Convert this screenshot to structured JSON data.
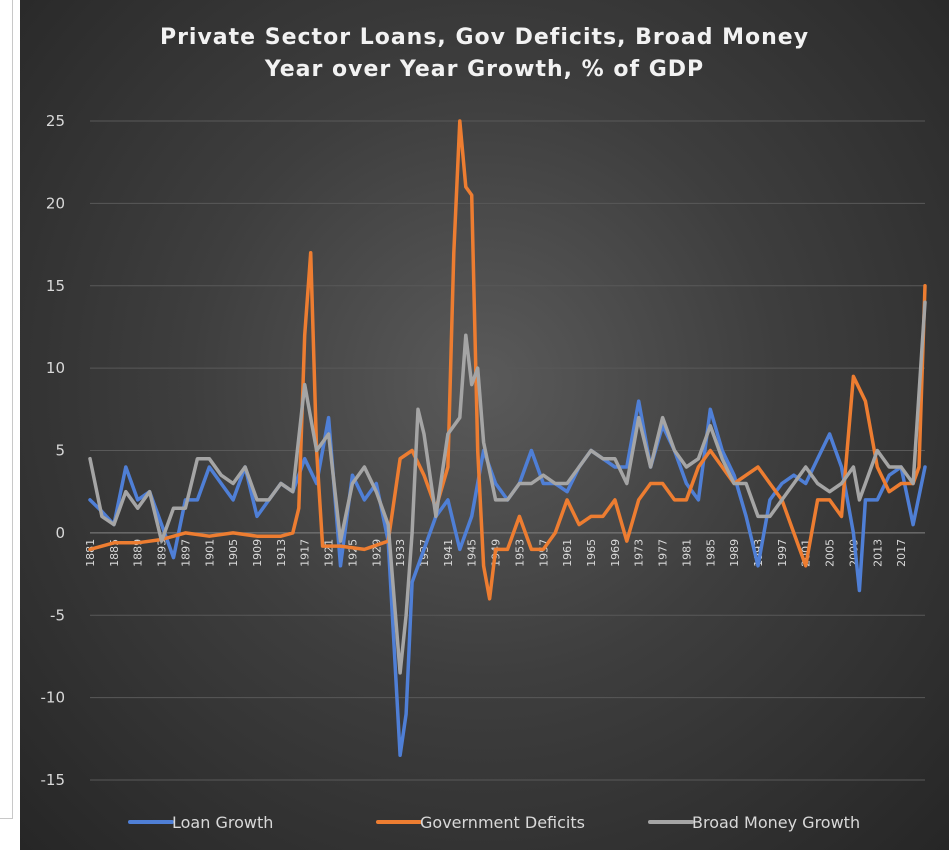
{
  "chart_data": {
    "type": "line",
    "title_line1": "Private Sector Loans, Gov Deficits, Broad Money",
    "title_line2": "Year over Year Growth, % of GDP",
    "ylim": [
      -15,
      25
    ],
    "yticks": [
      25,
      20,
      15,
      10,
      5,
      0,
      -5,
      -10,
      -15
    ],
    "xlim": [
      1881,
      2021
    ],
    "xticks": [
      1881,
      1885,
      1889,
      1893,
      1897,
      1901,
      1905,
      1909,
      1913,
      1917,
      1921,
      1925,
      1929,
      1933,
      1937,
      1941,
      1945,
      1949,
      1953,
      1957,
      1961,
      1965,
      1969,
      1973,
      1977,
      1981,
      1985,
      1989,
      1993,
      1997,
      2001,
      2005,
      2009,
      2013,
      2017
    ],
    "grid": "horizontal",
    "legend_position": "bottom",
    "series": [
      {
        "name": "Loan Growth",
        "color": "#4f7fd6",
        "points": [
          [
            1881,
            2
          ],
          [
            1883,
            1.3
          ],
          [
            1885,
            0.5
          ],
          [
            1887,
            4
          ],
          [
            1889,
            2
          ],
          [
            1891,
            2.5
          ],
          [
            1893,
            0.5
          ],
          [
            1895,
            -1.5
          ],
          [
            1897,
            2
          ],
          [
            1899,
            2
          ],
          [
            1901,
            4
          ],
          [
            1903,
            3
          ],
          [
            1905,
            2
          ],
          [
            1907,
            4
          ],
          [
            1909,
            1
          ],
          [
            1911,
            2
          ],
          [
            1913,
            3
          ],
          [
            1915,
            2.5
          ],
          [
            1917,
            4.5
          ],
          [
            1919,
            3
          ],
          [
            1921,
            7
          ],
          [
            1923,
            -2
          ],
          [
            1925,
            3.5
          ],
          [
            1927,
            2
          ],
          [
            1929,
            3
          ],
          [
            1931,
            -0.5
          ],
          [
            1932,
            -7
          ],
          [
            1933,
            -13.5
          ],
          [
            1934,
            -11
          ],
          [
            1935,
            -3
          ],
          [
            1937,
            -1
          ],
          [
            1939,
            1
          ],
          [
            1941,
            2
          ],
          [
            1943,
            -1
          ],
          [
            1945,
            1
          ],
          [
            1947,
            5
          ],
          [
            1949,
            3
          ],
          [
            1951,
            2
          ],
          [
            1953,
            3
          ],
          [
            1955,
            5
          ],
          [
            1957,
            3
          ],
          [
            1959,
            3
          ],
          [
            1961,
            2.5
          ],
          [
            1963,
            4
          ],
          [
            1965,
            5
          ],
          [
            1967,
            4.5
          ],
          [
            1969,
            4
          ],
          [
            1971,
            4
          ],
          [
            1973,
            8
          ],
          [
            1975,
            4
          ],
          [
            1977,
            6.5
          ],
          [
            1979,
            5
          ],
          [
            1981,
            3
          ],
          [
            1983,
            2
          ],
          [
            1985,
            7.5
          ],
          [
            1987,
            5
          ],
          [
            1989,
            3.5
          ],
          [
            1991,
            1
          ],
          [
            1993,
            -2
          ],
          [
            1995,
            2
          ],
          [
            1997,
            3
          ],
          [
            1999,
            3.5
          ],
          [
            2001,
            3
          ],
          [
            2003,
            4.5
          ],
          [
            2005,
            6
          ],
          [
            2007,
            4
          ],
          [
            2009,
            0
          ],
          [
            2010,
            -3.5
          ],
          [
            2011,
            2
          ],
          [
            2013,
            2
          ],
          [
            2015,
            3.5
          ],
          [
            2017,
            4
          ],
          [
            2019,
            0.5
          ],
          [
            2021,
            4
          ]
        ]
      },
      {
        "name": "Government Deficits",
        "color": "#ed7d31",
        "points": [
          [
            1881,
            -1
          ],
          [
            1885,
            -0.6
          ],
          [
            1889,
            -0.6
          ],
          [
            1893,
            -0.4
          ],
          [
            1897,
            0
          ],
          [
            1901,
            -0.2
          ],
          [
            1905,
            0
          ],
          [
            1909,
            -0.2
          ],
          [
            1913,
            -0.2
          ],
          [
            1915,
            0
          ],
          [
            1916,
            1.5
          ],
          [
            1917,
            12
          ],
          [
            1918,
            17
          ],
          [
            1919,
            5
          ],
          [
            1920,
            -0.8
          ],
          [
            1923,
            -0.8
          ],
          [
            1927,
            -1
          ],
          [
            1931,
            -0.5
          ],
          [
            1933,
            4.5
          ],
          [
            1935,
            5
          ],
          [
            1937,
            3.5
          ],
          [
            1939,
            1.5
          ],
          [
            1941,
            4
          ],
          [
            1942,
            17
          ],
          [
            1943,
            25
          ],
          [
            1944,
            21
          ],
          [
            1945,
            20.5
          ],
          [
            1946,
            5
          ],
          [
            1947,
            -2
          ],
          [
            1948,
            -4
          ],
          [
            1949,
            -1
          ],
          [
            1951,
            -1
          ],
          [
            1953,
            1
          ],
          [
            1955,
            -1
          ],
          [
            1957,
            -1
          ],
          [
            1959,
            0
          ],
          [
            1961,
            2
          ],
          [
            1963,
            0.5
          ],
          [
            1965,
            1
          ],
          [
            1967,
            1
          ],
          [
            1969,
            2
          ],
          [
            1971,
            -0.5
          ],
          [
            1973,
            2
          ],
          [
            1975,
            3
          ],
          [
            1977,
            3
          ],
          [
            1979,
            2
          ],
          [
            1981,
            2
          ],
          [
            1983,
            4
          ],
          [
            1985,
            5
          ],
          [
            1987,
            4
          ],
          [
            1989,
            3
          ],
          [
            1991,
            3.5
          ],
          [
            1993,
            4
          ],
          [
            1995,
            3
          ],
          [
            1997,
            2
          ],
          [
            1999,
            0
          ],
          [
            2001,
            -2
          ],
          [
            2003,
            2
          ],
          [
            2005,
            2
          ],
          [
            2007,
            1
          ],
          [
            2009,
            9.5
          ],
          [
            2011,
            8
          ],
          [
            2013,
            4
          ],
          [
            2015,
            2.5
          ],
          [
            2017,
            3
          ],
          [
            2019,
            3
          ],
          [
            2020,
            4
          ],
          [
            2021,
            15
          ]
        ]
      },
      {
        "name": "Broad Money Growth",
        "color": "#a5a5a5",
        "points": [
          [
            1881,
            4.5
          ],
          [
            1883,
            1
          ],
          [
            1885,
            0.5
          ],
          [
            1887,
            2.5
          ],
          [
            1889,
            1.5
          ],
          [
            1891,
            2.5
          ],
          [
            1893,
            -0.5
          ],
          [
            1895,
            1.5
          ],
          [
            1897,
            1.5
          ],
          [
            1899,
            4.5
          ],
          [
            1901,
            4.5
          ],
          [
            1903,
            3.5
          ],
          [
            1905,
            3
          ],
          [
            1907,
            4
          ],
          [
            1909,
            2
          ],
          [
            1911,
            2
          ],
          [
            1913,
            3
          ],
          [
            1915,
            2.5
          ],
          [
            1917,
            9
          ],
          [
            1919,
            5
          ],
          [
            1921,
            6
          ],
          [
            1923,
            -0.5
          ],
          [
            1925,
            3
          ],
          [
            1927,
            4
          ],
          [
            1929,
            2.5
          ],
          [
            1931,
            0.5
          ],
          [
            1933,
            -8.5
          ],
          [
            1934,
            -5
          ],
          [
            1935,
            0
          ],
          [
            1936,
            7.5
          ],
          [
            1937,
            6
          ],
          [
            1939,
            1
          ],
          [
            1941,
            6
          ],
          [
            1943,
            7
          ],
          [
            1944,
            12
          ],
          [
            1945,
            9
          ],
          [
            1946,
            10
          ],
          [
            1947,
            5.5
          ],
          [
            1949,
            2
          ],
          [
            1951,
            2
          ],
          [
            1953,
            3
          ],
          [
            1955,
            3
          ],
          [
            1957,
            3.5
          ],
          [
            1959,
            3
          ],
          [
            1961,
            3
          ],
          [
            1963,
            4
          ],
          [
            1965,
            5
          ],
          [
            1967,
            4.5
          ],
          [
            1969,
            4.5
          ],
          [
            1971,
            3
          ],
          [
            1973,
            7
          ],
          [
            1975,
            4
          ],
          [
            1977,
            7
          ],
          [
            1979,
            5
          ],
          [
            1981,
            4
          ],
          [
            1983,
            4.5
          ],
          [
            1985,
            6.5
          ],
          [
            1987,
            4.5
          ],
          [
            1989,
            3
          ],
          [
            1991,
            3
          ],
          [
            1993,
            1
          ],
          [
            1995,
            1
          ],
          [
            1997,
            2
          ],
          [
            1999,
            3
          ],
          [
            2001,
            4
          ],
          [
            2003,
            3
          ],
          [
            2005,
            2.5
          ],
          [
            2007,
            3
          ],
          [
            2009,
            4
          ],
          [
            2010,
            2
          ],
          [
            2011,
            3
          ],
          [
            2013,
            5
          ],
          [
            2015,
            4
          ],
          [
            2017,
            4
          ],
          [
            2019,
            3
          ],
          [
            2021,
            14
          ]
        ]
      }
    ]
  }
}
